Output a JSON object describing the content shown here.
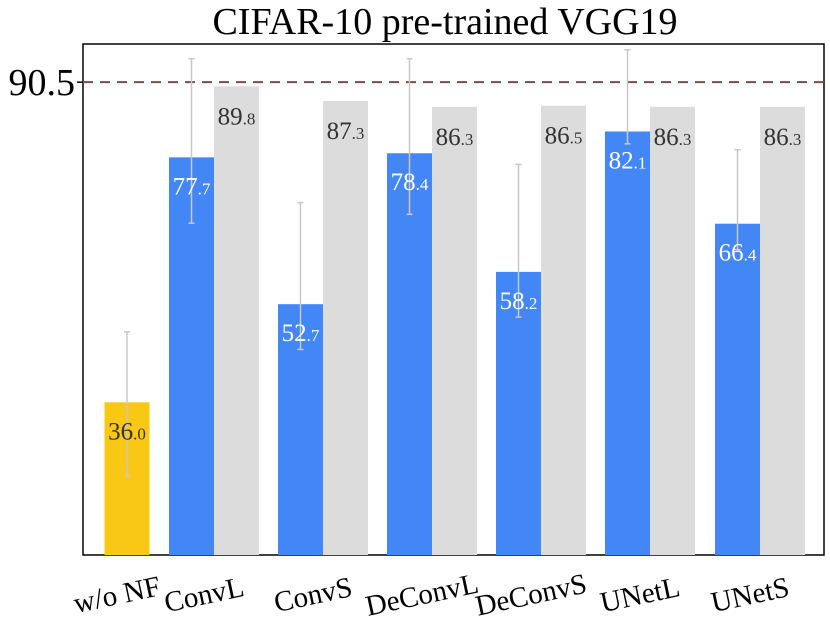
{
  "chart_data": {
    "type": "bar",
    "title": "CIFAR-10 pre-trained VGG19",
    "xlabel": "",
    "ylabel": "",
    "ylim": [
      10,
      97
    ],
    "reference_line": {
      "value": 90.5,
      "label": "90.5",
      "style": "dashed",
      "color": "#7a4a52"
    },
    "categories": [
      "w/o NF",
      "ConvL",
      "ConvS",
      "DeConvL",
      "DeConvS",
      "UNetL",
      "UNetS"
    ],
    "series": [
      {
        "name": "blue",
        "color": "#4287f5",
        "values": [
          36.0,
          77.7,
          52.7,
          78.4,
          58.2,
          82.1,
          66.4
        ],
        "labels": [
          {
            "main": "36",
            "dec": ".0"
          },
          {
            "main": "77",
            "dec": ".7"
          },
          {
            "main": "52",
            "dec": ".7"
          },
          {
            "main": "78",
            "dec": ".4"
          },
          {
            "main": "58",
            "dec": ".2"
          },
          {
            "main": "82",
            "dec": ".1"
          },
          {
            "main": "66",
            "dec": ".4"
          }
        ],
        "error_low": [
          23.5,
          66.5,
          45.0,
          68.0,
          50.5,
          80.0,
          62.0
        ],
        "error_high": [
          48.0,
          94.5,
          70.0,
          94.5,
          76.5,
          96.0,
          79.0
        ]
      },
      {
        "name": "gray",
        "color": "#dcdcdc",
        "values": [
          null,
          89.8,
          87.3,
          86.3,
          86.5,
          86.3,
          86.3
        ],
        "labels": [
          null,
          {
            "main": "89",
            "dec": ".8"
          },
          {
            "main": "87",
            "dec": ".3"
          },
          {
            "main": "86",
            "dec": ".3"
          },
          {
            "main": "86",
            "dec": ".5"
          },
          {
            "main": "86",
            "dec": ".3"
          },
          {
            "main": "86",
            "dec": ".3"
          }
        ]
      }
    ],
    "first_bar_color": "#f9c814",
    "first_bar_label_color": "#333333"
  }
}
